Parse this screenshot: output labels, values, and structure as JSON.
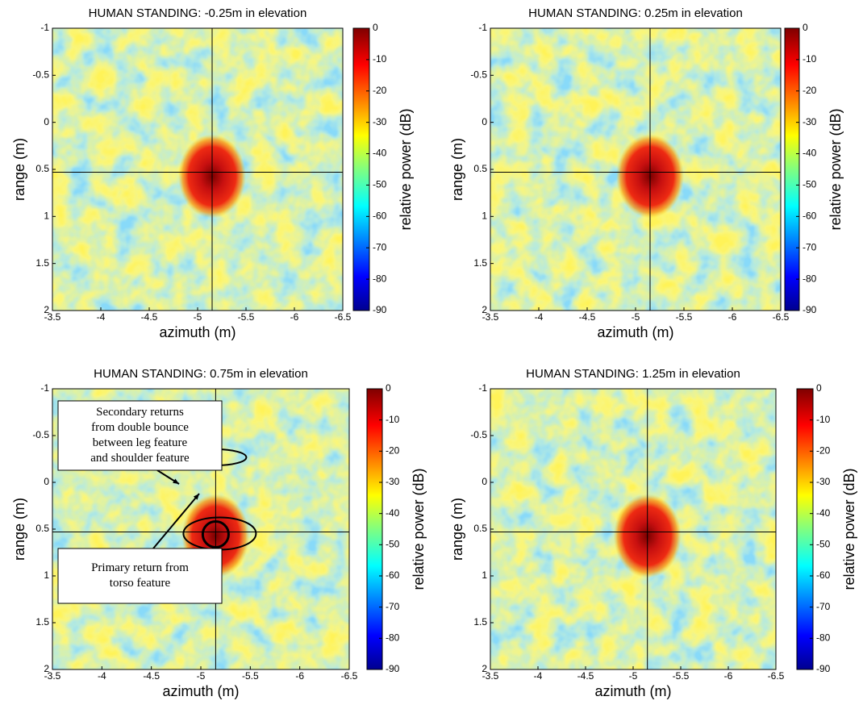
{
  "chart_data": [
    {
      "type": "heatmap",
      "title": "HUMAN STANDING: -0.25m in elevation",
      "xlabel": "azimuth (m)",
      "ylabel": "range (m)",
      "xlim": [
        -3.5,
        -6.5
      ],
      "xticks": [
        -3.5,
        -4,
        -4.5,
        -5,
        -5.5,
        -6,
        -6.5
      ],
      "ylim": [
        -1,
        2
      ],
      "yticks": [
        -1,
        -0.5,
        0,
        0.5,
        1,
        1.5,
        2
      ],
      "colorbar": {
        "label": "relative power (dB)",
        "lim": [
          -90,
          0
        ],
        "ticks": [
          0,
          -10,
          -20,
          -30,
          -40,
          -50,
          -60,
          -70,
          -80,
          -90
        ]
      },
      "crosshair": {
        "x": -5.15,
        "y": 0.53
      }
    },
    {
      "type": "heatmap",
      "title": "HUMAN STANDING: 0.25m in elevation",
      "xlabel": "azimuth (m)",
      "ylabel": "range (m)",
      "xlim": [
        -3.5,
        -6.5
      ],
      "xticks": [
        -3.5,
        -4,
        -4.5,
        -5,
        -5.5,
        -6,
        -6.5
      ],
      "ylim": [
        -1,
        2
      ],
      "yticks": [
        -1,
        -0.5,
        0,
        0.5,
        1,
        1.5,
        2
      ],
      "colorbar": {
        "label": "relative power (dB)",
        "lim": [
          -90,
          0
        ],
        "ticks": [
          0,
          -10,
          -20,
          -30,
          -40,
          -50,
          -60,
          -70,
          -80,
          -90
        ]
      },
      "crosshair": {
        "x": -5.15,
        "y": 0.53
      }
    },
    {
      "type": "heatmap",
      "title": "HUMAN STANDING: 0.75m in elevation",
      "xlabel": "azimuth (m)",
      "ylabel": "range (m)",
      "xlim": [
        -3.5,
        -6.5
      ],
      "xticks": [
        -3.5,
        -4,
        -4.5,
        -5,
        -5.5,
        -6,
        -6.5
      ],
      "ylim": [
        -1,
        2
      ],
      "yticks": [
        -1,
        -0.5,
        0,
        0.5,
        1,
        1.5,
        2
      ],
      "colorbar": {
        "label": "relative power (dB)",
        "lim": [
          -90,
          0
        ],
        "ticks": [
          0,
          -10,
          -20,
          -30,
          -40,
          -50,
          -60,
          -70,
          -80,
          -90
        ]
      },
      "crosshair": {
        "x": -5.15,
        "y": 0.53
      },
      "annotations": [
        {
          "lines": [
            "Secondary returns",
            "from double bounce",
            "between leg feature",
            "and shoulder feature"
          ]
        },
        {
          "lines": [
            "Primary return from",
            "torso feature"
          ]
        }
      ]
    },
    {
      "type": "heatmap",
      "title": "HUMAN STANDING: 1.25m in elevation",
      "xlabel": "azimuth (m)",
      "ylabel": "range (m)",
      "xlim": [
        -3.5,
        -6.5
      ],
      "xticks": [
        -3.5,
        -4,
        -4.5,
        -5,
        -5.5,
        -6,
        -6.5
      ],
      "ylim": [
        -1,
        2
      ],
      "yticks": [
        -1,
        -0.5,
        0,
        0.5,
        1,
        1.5,
        2
      ],
      "colorbar": {
        "label": "relative power (dB)",
        "lim": [
          -90,
          0
        ],
        "ticks": [
          0,
          -10,
          -20,
          -30,
          -40,
          -50,
          -60,
          -70,
          -80,
          -90
        ]
      },
      "crosshair": {
        "x": -5.15,
        "y": 0.53
      }
    }
  ]
}
